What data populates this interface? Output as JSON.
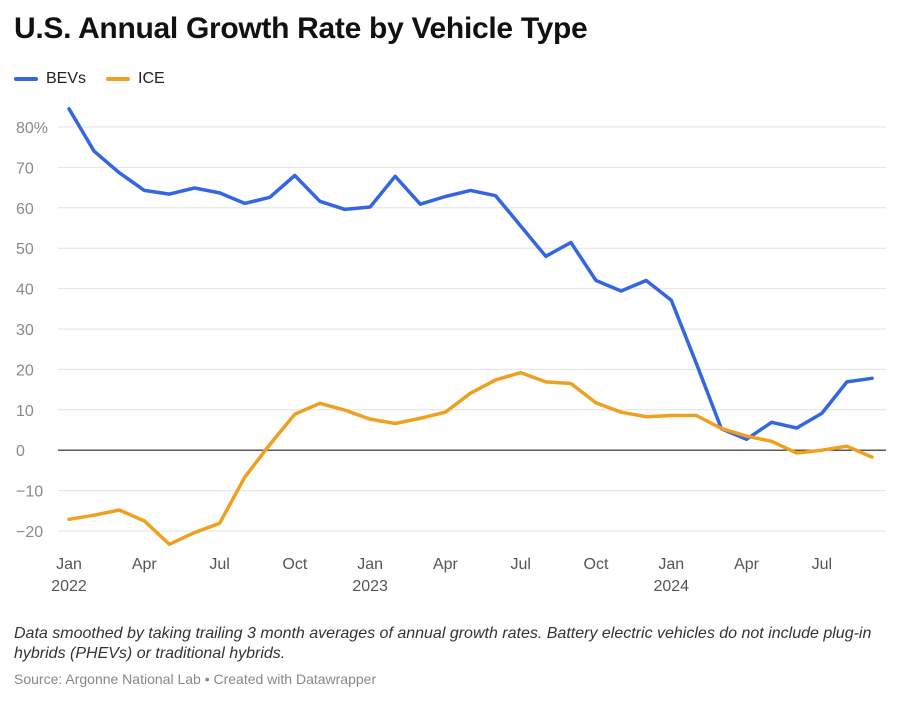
{
  "header": {
    "title": "U.S. Annual Growth Rate by Vehicle Type"
  },
  "footer": {
    "note": "Data smoothed by taking trailing 3 month averages of annual growth rates. Battery electric vehicles do not include plug-in hybrids (PHEVs) or traditional hybrids.",
    "source": "Source: Argonne National Lab • Created with Datawrapper"
  },
  "chart_data": {
    "type": "line",
    "title": "U.S. Annual Growth Rate by Vehicle Type",
    "xlabel": "",
    "ylabel": "",
    "ylim": [
      -20,
      80
    ],
    "yticks": [
      -20,
      -10,
      0,
      10,
      20,
      30,
      40,
      50,
      60,
      70,
      80
    ],
    "ytick_labels": [
      "−20",
      "−10",
      "0",
      "10",
      "20",
      "30",
      "40",
      "50",
      "60",
      "70",
      "80%"
    ],
    "x": [
      "2022-01",
      "2022-02",
      "2022-03",
      "2022-04",
      "2022-05",
      "2022-06",
      "2022-07",
      "2022-08",
      "2022-09",
      "2022-10",
      "2022-11",
      "2022-12",
      "2023-01",
      "2023-02",
      "2023-03",
      "2023-04",
      "2023-05",
      "2023-06",
      "2023-07",
      "2023-08",
      "2023-09",
      "2023-10",
      "2023-11",
      "2023-12",
      "2024-01",
      "2024-02",
      "2024-03",
      "2024-04",
      "2024-05",
      "2024-06",
      "2024-07",
      "2024-08",
      "2024-09"
    ],
    "xticks": [
      {
        "x": "2022-01",
        "label": "Jan",
        "year": "2022"
      },
      {
        "x": "2022-04",
        "label": "Apr",
        "year": ""
      },
      {
        "x": "2022-07",
        "label": "Jul",
        "year": ""
      },
      {
        "x": "2022-10",
        "label": "Oct",
        "year": ""
      },
      {
        "x": "2023-01",
        "label": "Jan",
        "year": "2023"
      },
      {
        "x": "2023-04",
        "label": "Apr",
        "year": ""
      },
      {
        "x": "2023-07",
        "label": "Jul",
        "year": ""
      },
      {
        "x": "2023-10",
        "label": "Oct",
        "year": ""
      },
      {
        "x": "2024-01",
        "label": "Jan",
        "year": "2024"
      },
      {
        "x": "2024-04",
        "label": "Apr",
        "year": ""
      },
      {
        "x": "2024-07",
        "label": "Jul",
        "year": ""
      }
    ],
    "grid": true,
    "legend_position": "top-left",
    "series": [
      {
        "name": "BEVs",
        "color": "#3366e0",
        "values": [
          84.5,
          74,
          68.7,
          64.3,
          63.4,
          64.9,
          63.7,
          61.1,
          62.6,
          68.0,
          61.6,
          59.6,
          60.2,
          67.8,
          60.9,
          62.8,
          64.3,
          63.0,
          55.5,
          48.0,
          51.4,
          42.0,
          39.4,
          42.0,
          37.1,
          21.5,
          5.3,
          2.7,
          6.9,
          5.5,
          9.1,
          16.9,
          17.8
        ]
      },
      {
        "name": "ICE",
        "color": "#f0a020",
        "values": [
          -17.1,
          -16.1,
          -14.8,
          -17.5,
          -23.3,
          -20.4,
          -18.1,
          -6.7,
          1.4,
          8.9,
          11.6,
          9.9,
          7.7,
          6.6,
          7.9,
          9.4,
          14.1,
          17.4,
          19.2,
          16.9,
          16.5,
          11.7,
          9.4,
          8.3,
          8.6,
          8.6,
          5.4,
          3.5,
          2.2,
          -0.7,
          0.0,
          1.0,
          -1.7
        ]
      }
    ]
  }
}
